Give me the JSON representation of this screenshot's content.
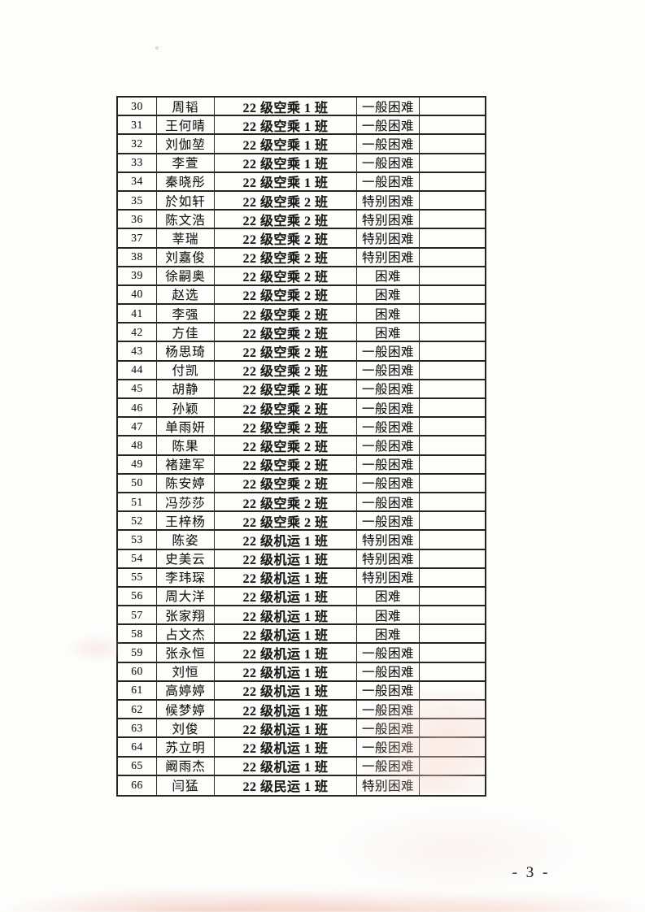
{
  "page": {
    "number_label": "- 3 -"
  },
  "table": {
    "rows": [
      {
        "no": "30",
        "name": "周韬",
        "class_name": "22 级空乘 1 班",
        "status": "一般困难",
        "note": ""
      },
      {
        "no": "31",
        "name": "王何晴",
        "class_name": "22 级空乘 1 班",
        "status": "一般困难",
        "note": ""
      },
      {
        "no": "32",
        "name": "刘伽堃",
        "class_name": "22 级空乘 1 班",
        "status": "一般困难",
        "note": ""
      },
      {
        "no": "33",
        "name": "李萱",
        "class_name": "22 级空乘 1 班",
        "status": "一般困难",
        "note": ""
      },
      {
        "no": "34",
        "name": "秦晓彤",
        "class_name": "22 级空乘 1 班",
        "status": "一般困难",
        "note": ""
      },
      {
        "no": "35",
        "name": "於如轩",
        "class_name": "22 级空乘 2 班",
        "status": "特别困难",
        "note": ""
      },
      {
        "no": "36",
        "name": "陈文浩",
        "class_name": "22 级空乘 2 班",
        "status": "特别困难",
        "note": ""
      },
      {
        "no": "37",
        "name": "莘瑞",
        "class_name": "22 级空乘 2 班",
        "status": "特别困难",
        "note": ""
      },
      {
        "no": "38",
        "name": "刘嘉俊",
        "class_name": "22 级空乘 2 班",
        "status": "特别困难",
        "note": ""
      },
      {
        "no": "39",
        "name": "徐嗣奥",
        "class_name": "22 级空乘 2 班",
        "status": "困难",
        "note": ""
      },
      {
        "no": "40",
        "name": "赵选",
        "class_name": "22 级空乘 2 班",
        "status": "困难",
        "note": ""
      },
      {
        "no": "41",
        "name": "李强",
        "class_name": "22 级空乘 2 班",
        "status": "困难",
        "note": ""
      },
      {
        "no": "42",
        "name": "方佳",
        "class_name": "22 级空乘 2 班",
        "status": "困难",
        "note": ""
      },
      {
        "no": "43",
        "name": "杨思琦",
        "class_name": "22 级空乘 2 班",
        "status": "一般困难",
        "note": ""
      },
      {
        "no": "44",
        "name": "付凯",
        "class_name": "22 级空乘 2 班",
        "status": "一般困难",
        "note": ""
      },
      {
        "no": "45",
        "name": "胡静",
        "class_name": "22 级空乘 2 班",
        "status": "一般困难",
        "note": ""
      },
      {
        "no": "46",
        "name": "孙颖",
        "class_name": "22 级空乘 2 班",
        "status": "一般困难",
        "note": ""
      },
      {
        "no": "47",
        "name": "单雨妍",
        "class_name": "22 级空乘 2 班",
        "status": "一般困难",
        "note": ""
      },
      {
        "no": "48",
        "name": "陈果",
        "class_name": "22 级空乘 2 班",
        "status": "一般困难",
        "note": ""
      },
      {
        "no": "49",
        "name": "褚建军",
        "class_name": "22 级空乘 2 班",
        "status": "一般困难",
        "note": ""
      },
      {
        "no": "50",
        "name": "陈安婷",
        "class_name": "22 级空乘 2 班",
        "status": "一般困难",
        "note": ""
      },
      {
        "no": "51",
        "name": "冯莎莎",
        "class_name": "22 级空乘 2 班",
        "status": "一般困难",
        "note": ""
      },
      {
        "no": "52",
        "name": "王梓杨",
        "class_name": "22 级空乘 2 班",
        "status": "一般困难",
        "note": ""
      },
      {
        "no": "53",
        "name": "陈姿",
        "class_name": "22 级机运 1 班",
        "status": "特别困难",
        "note": ""
      },
      {
        "no": "54",
        "name": "史美云",
        "class_name": "22 级机运 1 班",
        "status": "特别困难",
        "note": ""
      },
      {
        "no": "55",
        "name": "李玮琛",
        "class_name": "22 级机运 1 班",
        "status": "特别困难",
        "note": ""
      },
      {
        "no": "56",
        "name": "周大洋",
        "class_name": "22 级机运 1 班",
        "status": "困难",
        "note": ""
      },
      {
        "no": "57",
        "name": "张家翔",
        "class_name": "22 级机运 1 班",
        "status": "困难",
        "note": ""
      },
      {
        "no": "58",
        "name": "占文杰",
        "class_name": "22 级机运 1 班",
        "status": "困难",
        "note": ""
      },
      {
        "no": "59",
        "name": "张永恒",
        "class_name": "22 级机运 1 班",
        "status": "一般困难",
        "note": ""
      },
      {
        "no": "60",
        "name": "刘恒",
        "class_name": "22 级机运 1 班",
        "status": "一般困难",
        "note": ""
      },
      {
        "no": "61",
        "name": "高婷婷",
        "class_name": "22 级机运 1 班",
        "status": "一般困难",
        "note": ""
      },
      {
        "no": "62",
        "name": "候梦婷",
        "class_name": "22 级机运 1 班",
        "status": "一般困难",
        "note": ""
      },
      {
        "no": "63",
        "name": "刘俊",
        "class_name": "22 级机运 1 班",
        "status": "一般困难",
        "note": ""
      },
      {
        "no": "64",
        "name": "苏立明",
        "class_name": "22 级机运 1 班",
        "status": "一般困难",
        "note": ""
      },
      {
        "no": "65",
        "name": "阚雨杰",
        "class_name": "22 级机运 1 班",
        "status": "一般困难",
        "note": ""
      },
      {
        "no": "66",
        "name": "闫猛",
        "class_name": "22 级民运 1 班",
        "status": "特别困难",
        "note": ""
      }
    ]
  }
}
